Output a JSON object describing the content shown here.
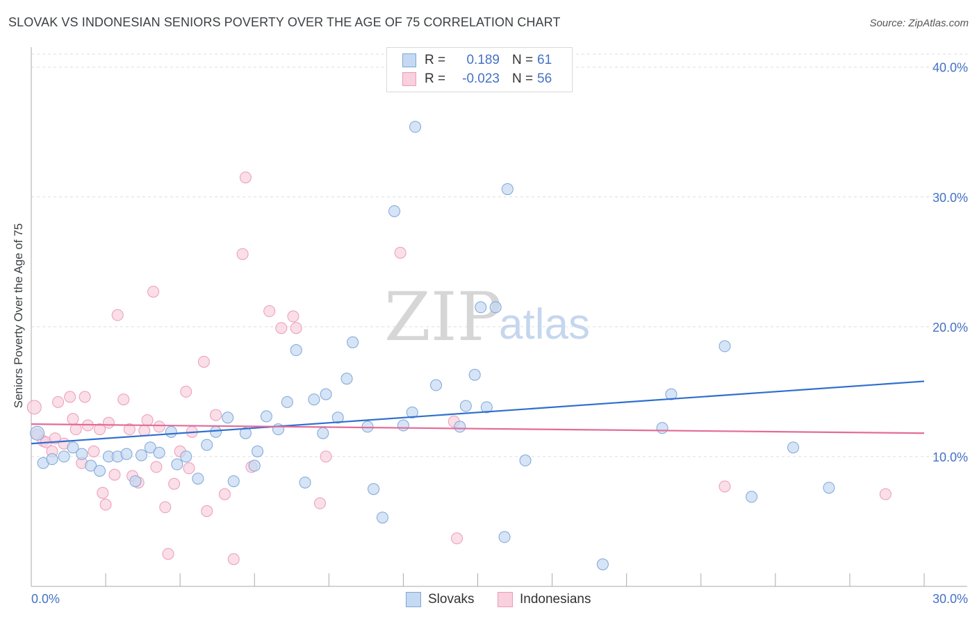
{
  "title": "SLOVAK VS INDONESIAN SENIORS POVERTY OVER THE AGE OF 75 CORRELATION CHART",
  "source": "Source: ZipAtlas.com",
  "watermark": {
    "zip": "ZIP",
    "atlas": "atlas"
  },
  "legend": {
    "rows": [
      {
        "r_label": "R =",
        "r_value": "0.189",
        "n_label": "N =",
        "n_value": "61"
      },
      {
        "r_label": "R =",
        "r_value": "-0.023",
        "n_label": "N =",
        "n_value": "56"
      }
    ]
  },
  "colors": {
    "slovaks_fill": "#c5d9f2",
    "slovaks_stroke": "#7aa6d9",
    "slovaks_line": "#2d6fcf",
    "indonesians_fill": "#f8d0de",
    "indonesians_stroke": "#eb9bb7",
    "indonesians_line": "#e36b98",
    "tick_text": "#4472c4",
    "grid": "#dddddd"
  },
  "chart_data": {
    "type": "scatter",
    "title": "SLOVAK VS INDONESIAN SENIORS POVERTY OVER THE AGE OF 75 CORRELATION CHART",
    "xlabel": "",
    "ylabel": "Seniors Poverty Over the Age of 75",
    "xlim": [
      0,
      30
    ],
    "ylim": [
      0,
      41
    ],
    "x_tick_labels": [
      "0.0%",
      "30.0%"
    ],
    "y_ticks": [
      10,
      20,
      30,
      40
    ],
    "y_tick_labels": [
      "10.0%",
      "20.0%",
      "30.0%",
      "40.0%"
    ],
    "grid": true,
    "legend_position": "top-center",
    "series": [
      {
        "name": "Slovaks",
        "stats": {
          "R": 0.189,
          "N": 61
        },
        "trend": {
          "x": [
            0,
            30
          ],
          "y": [
            11.0,
            15.8
          ]
        },
        "points": [
          [
            0.2,
            11.8
          ],
          [
            0.4,
            9.5
          ],
          [
            0.7,
            9.8
          ],
          [
            1.1,
            10.0
          ],
          [
            1.4,
            10.7
          ],
          [
            1.7,
            10.2
          ],
          [
            2.0,
            9.3
          ],
          [
            2.3,
            8.9
          ],
          [
            2.6,
            10.0
          ],
          [
            2.9,
            10.0
          ],
          [
            3.2,
            10.2
          ],
          [
            3.5,
            8.1
          ],
          [
            3.7,
            10.1
          ],
          [
            4.0,
            10.7
          ],
          [
            4.3,
            10.3
          ],
          [
            4.7,
            11.9
          ],
          [
            4.9,
            9.4
          ],
          [
            5.2,
            10.0
          ],
          [
            5.6,
            8.3
          ],
          [
            5.9,
            10.9
          ],
          [
            6.2,
            11.9
          ],
          [
            6.6,
            13.0
          ],
          [
            6.8,
            8.1
          ],
          [
            7.2,
            11.8
          ],
          [
            7.5,
            9.3
          ],
          [
            7.6,
            10.4
          ],
          [
            7.9,
            13.1
          ],
          [
            8.3,
            12.1
          ],
          [
            8.6,
            14.2
          ],
          [
            8.9,
            18.2
          ],
          [
            9.2,
            8.0
          ],
          [
            9.5,
            14.4
          ],
          [
            9.8,
            11.8
          ],
          [
            9.9,
            14.8
          ],
          [
            10.3,
            13.0
          ],
          [
            10.6,
            16.0
          ],
          [
            10.8,
            18.8
          ],
          [
            11.3,
            12.3
          ],
          [
            11.5,
            7.5
          ],
          [
            11.8,
            5.3
          ],
          [
            12.2,
            28.9
          ],
          [
            12.5,
            12.4
          ],
          [
            12.8,
            13.4
          ],
          [
            12.9,
            35.4
          ],
          [
            13.6,
            15.5
          ],
          [
            14.4,
            12.3
          ],
          [
            14.6,
            13.9
          ],
          [
            14.9,
            16.3
          ],
          [
            15.1,
            21.5
          ],
          [
            15.3,
            13.8
          ],
          [
            15.6,
            21.5
          ],
          [
            15.9,
            3.8
          ],
          [
            16.0,
            30.6
          ],
          [
            16.6,
            9.7
          ],
          [
            19.2,
            1.7
          ],
          [
            21.2,
            12.2
          ],
          [
            21.5,
            14.8
          ],
          [
            23.3,
            18.5
          ],
          [
            24.2,
            6.9
          ],
          [
            25.6,
            10.7
          ],
          [
            26.8,
            7.6
          ]
        ]
      },
      {
        "name": "Indonesians",
        "stats": {
          "R": -0.023,
          "N": 56
        },
        "trend": {
          "x": [
            0,
            30
          ],
          "y": [
            12.5,
            11.8
          ]
        },
        "points": [
          [
            0.1,
            13.8
          ],
          [
            0.2,
            11.7
          ],
          [
            0.4,
            11.2
          ],
          [
            0.5,
            11.1
          ],
          [
            0.7,
            10.4
          ],
          [
            0.8,
            11.4
          ],
          [
            0.9,
            14.2
          ],
          [
            1.1,
            11.0
          ],
          [
            1.3,
            14.6
          ],
          [
            1.4,
            12.9
          ],
          [
            1.5,
            12.1
          ],
          [
            1.7,
            9.5
          ],
          [
            1.8,
            14.6
          ],
          [
            1.9,
            12.4
          ],
          [
            2.1,
            10.4
          ],
          [
            2.3,
            12.1
          ],
          [
            2.4,
            7.2
          ],
          [
            2.5,
            6.3
          ],
          [
            2.6,
            12.6
          ],
          [
            2.8,
            8.6
          ],
          [
            2.9,
            20.9
          ],
          [
            3.1,
            14.4
          ],
          [
            3.3,
            12.1
          ],
          [
            3.4,
            8.5
          ],
          [
            3.6,
            8.0
          ],
          [
            3.8,
            12.0
          ],
          [
            3.9,
            12.8
          ],
          [
            4.1,
            22.7
          ],
          [
            4.2,
            9.2
          ],
          [
            4.3,
            12.3
          ],
          [
            4.5,
            6.1
          ],
          [
            4.6,
            2.5
          ],
          [
            4.8,
            7.9
          ],
          [
            5.0,
            10.4
          ],
          [
            5.2,
            15.0
          ],
          [
            5.3,
            9.1
          ],
          [
            5.4,
            11.9
          ],
          [
            5.8,
            17.3
          ],
          [
            5.9,
            5.8
          ],
          [
            6.2,
            13.2
          ],
          [
            6.5,
            7.1
          ],
          [
            6.8,
            2.1
          ],
          [
            7.1,
            25.6
          ],
          [
            7.2,
            31.5
          ],
          [
            7.4,
            9.2
          ],
          [
            8.0,
            21.2
          ],
          [
            8.4,
            19.9
          ],
          [
            8.8,
            20.8
          ],
          [
            8.9,
            19.9
          ],
          [
            9.7,
            6.4
          ],
          [
            9.9,
            10.0
          ],
          [
            12.4,
            25.7
          ],
          [
            14.2,
            12.7
          ],
          [
            14.3,
            3.7
          ],
          [
            23.3,
            7.7
          ],
          [
            28.7,
            7.1
          ]
        ]
      }
    ]
  }
}
